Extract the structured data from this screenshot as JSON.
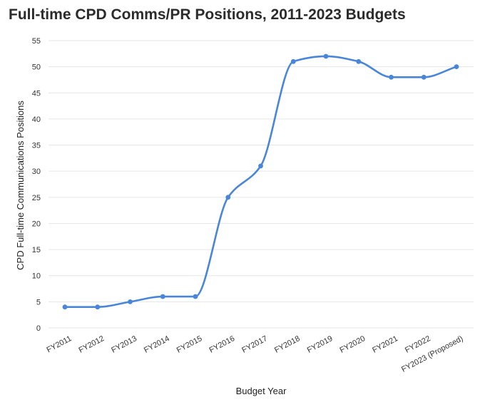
{
  "chart_data": {
    "type": "line",
    "title": "Full-time CPD Comms/PR Positions, 2011-2023 Budgets",
    "xlabel": "Budget Year",
    "ylabel": "CPD Full-time Communications Positions",
    "categories": [
      "FY2011",
      "FY2012",
      "FY2013",
      "FY2014",
      "FY2015",
      "FY2016",
      "FY2017",
      "FY2018",
      "FY2019",
      "FY2020",
      "FY2021",
      "FY2022",
      "FY2023 (Proposed)"
    ],
    "series": [
      {
        "values": [
          4,
          4,
          5,
          6,
          6,
          25,
          31,
          51,
          52,
          51,
          48,
          48,
          50
        ]
      }
    ],
    "ylim": [
      0,
      55
    ],
    "yticks": [
      0,
      5,
      10,
      15,
      20,
      25,
      30,
      35,
      40,
      45,
      50,
      55
    ],
    "grid": true,
    "smooth": true,
    "color": "#4a86d8"
  }
}
